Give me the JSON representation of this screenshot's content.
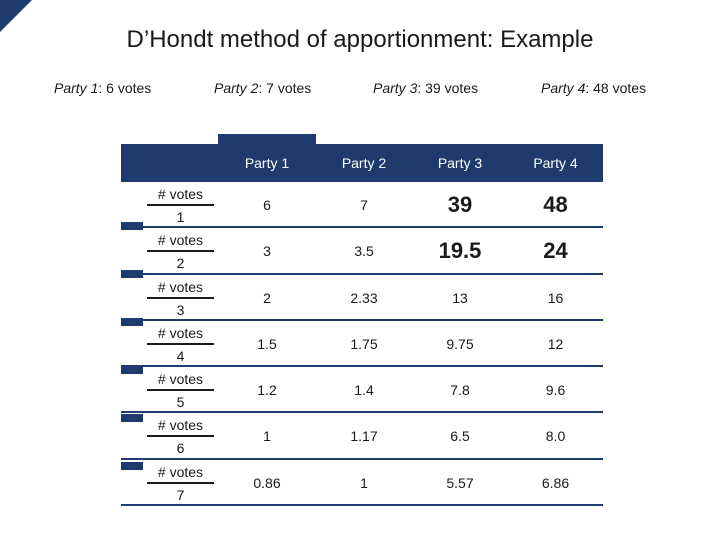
{
  "title": "D’Hondt method of apportionment: Example",
  "party_labels": [
    {
      "name": "Party 1",
      "votes": ":  6 votes"
    },
    {
      "name": "Party 2",
      "votes": ": 7 votes"
    },
    {
      "name": "Party 3",
      "votes": ": 39 votes"
    },
    {
      "name": "Party 4",
      "votes": ": 48 votes"
    }
  ],
  "table": {
    "headers": [
      "Party 1",
      "Party 2",
      "Party 3",
      "Party 4"
    ],
    "row_numerator": "# votes",
    "rows": [
      {
        "divisor": "1",
        "values": [
          "6",
          "7",
          "39",
          "48"
        ],
        "bold": [
          false,
          false,
          true,
          true
        ]
      },
      {
        "divisor": "2",
        "values": [
          "3",
          "3.5",
          "19.5",
          "24"
        ],
        "bold": [
          false,
          false,
          true,
          true
        ]
      },
      {
        "divisor": "3",
        "values": [
          "2",
          "2.33",
          "13",
          "16"
        ],
        "bold": [
          false,
          false,
          false,
          false
        ]
      },
      {
        "divisor": "4",
        "values": [
          "1.5",
          "1.75",
          "9.75",
          "12"
        ],
        "bold": [
          false,
          false,
          false,
          false
        ]
      },
      {
        "divisor": "5",
        "values": [
          "1.2",
          "1.4",
          "7.8",
          "9.6"
        ],
        "bold": [
          false,
          false,
          false,
          false
        ]
      },
      {
        "divisor": "6",
        "values": [
          "1",
          "1.17",
          "6.5",
          "8.0"
        ],
        "bold": [
          false,
          false,
          false,
          false
        ]
      },
      {
        "divisor": "7",
        "values": [
          "0.86",
          "1",
          "5.57",
          "6.86"
        ],
        "bold": [
          false,
          false,
          false,
          false
        ]
      }
    ]
  },
  "colors": {
    "header_band": "#1f3b6e"
  }
}
